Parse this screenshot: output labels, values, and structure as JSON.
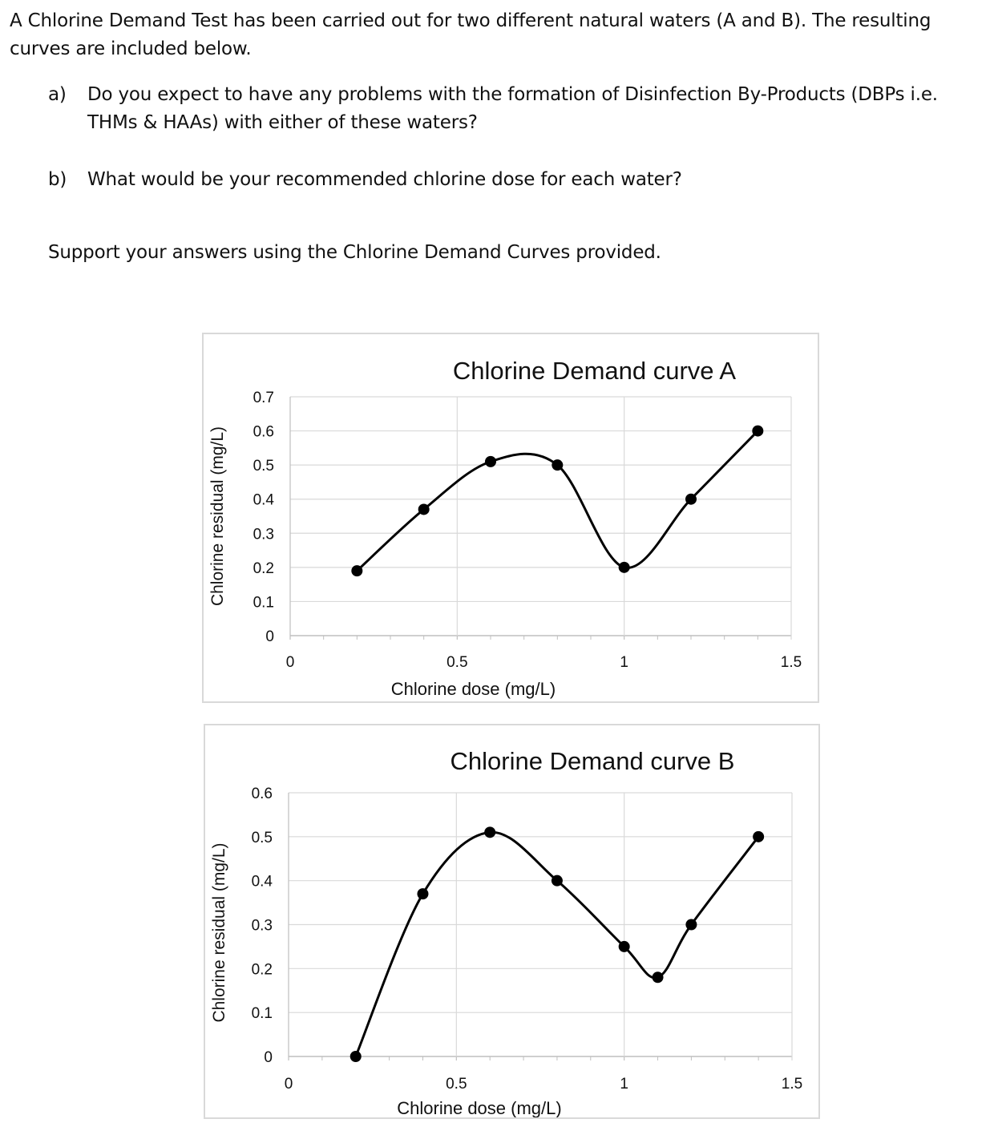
{
  "question": {
    "intro": "A Chlorine Demand Test has been carried out for two different natural waters (A and B). The resulting curves are included below.",
    "part_a_label": "a)",
    "part_a": "Do you expect to have any problems with the formation of Disinfection By-Products (DBPs i.e. THMs & HAAs) with either of these waters?",
    "part_b_label": "b)",
    "part_b": "What would be your recommended chlorine dose for each water?",
    "support": "Support your answers using the Chlorine Demand Curves provided."
  },
  "chart_data": [
    {
      "type": "line",
      "title": "Chlorine Demand curve A",
      "xlabel": "Chlorine dose (mg/L)",
      "ylabel": "Chlorine residual (mg/L)",
      "xlim": [
        0,
        1.5
      ],
      "ylim": [
        0,
        0.7
      ],
      "xticks": [
        "0",
        "0.5",
        "1",
        "1.5"
      ],
      "yticks": [
        "0",
        "0.1",
        "0.2",
        "0.3",
        "0.4",
        "0.5",
        "0.6",
        "0.7"
      ],
      "grid": true,
      "smooth": true,
      "color": "#000000",
      "x": [
        0.2,
        0.4,
        0.6,
        0.8,
        1.0,
        1.2,
        1.4
      ],
      "y": [
        0.19,
        0.37,
        0.51,
        0.5,
        0.2,
        0.4,
        0.6
      ]
    },
    {
      "type": "line",
      "title": "Chlorine Demand curve B",
      "xlabel": "Chlorine dose (mg/L)",
      "ylabel": "Chlorine residual (mg/L)",
      "xlim": [
        0,
        1.5
      ],
      "ylim": [
        0,
        0.6
      ],
      "xticks": [
        "0",
        "0.5",
        "1",
        "1.5"
      ],
      "yticks": [
        "0",
        "0.1",
        "0.2",
        "0.3",
        "0.4",
        "0.5",
        "0.6"
      ],
      "grid": true,
      "smooth": true,
      "color": "#000000",
      "x": [
        0.2,
        0.4,
        0.6,
        0.8,
        1.0,
        1.1,
        1.2,
        1.4
      ],
      "y": [
        0,
        0.37,
        0.51,
        0.4,
        0.25,
        0.18,
        0.3,
        0.5
      ]
    }
  ]
}
